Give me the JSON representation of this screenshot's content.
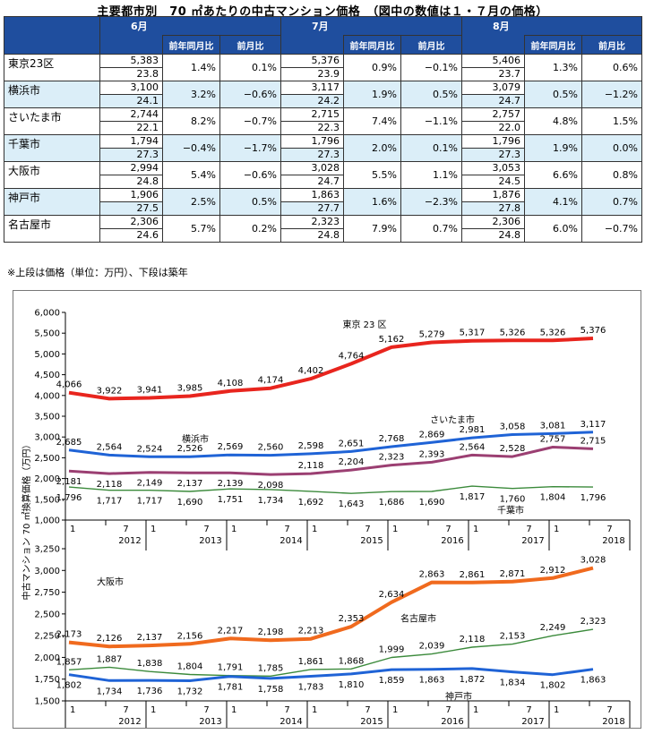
{
  "title": "主要都市別　70 ㎡あたりの中古マンション価格　（図中の数値は１・７月の価格）",
  "table": {
    "months": [
      "6月",
      "7月",
      "8月"
    ],
    "sub_headers": [
      "前年同月比",
      "前月比"
    ],
    "rows": [
      {
        "city": "東京23区",
        "cells": [
          {
            "price": "5,383",
            "age": "23.8",
            "yoy": "1.4%",
            "mom": "0.1%"
          },
          {
            "price": "5,376",
            "age": "23.9",
            "yoy": "0.9%",
            "mom": "−0.1%"
          },
          {
            "price": "5,406",
            "age": "23.7",
            "yoy": "1.3%",
            "mom": "0.6%"
          }
        ]
      },
      {
        "city": "横浜市",
        "cells": [
          {
            "price": "3,100",
            "age": "24.1",
            "yoy": "3.2%",
            "mom": "−0.6%"
          },
          {
            "price": "3,117",
            "age": "24.2",
            "yoy": "1.9%",
            "mom": "0.5%"
          },
          {
            "price": "3,079",
            "age": "24.7",
            "yoy": "0.5%",
            "mom": "−1.2%"
          }
        ]
      },
      {
        "city": "さいたま市",
        "cells": [
          {
            "price": "2,744",
            "age": "22.1",
            "yoy": "8.2%",
            "mom": "−0.7%"
          },
          {
            "price": "2,715",
            "age": "22.3",
            "yoy": "7.4%",
            "mom": "−1.1%"
          },
          {
            "price": "2,757",
            "age": "22.0",
            "yoy": "4.8%",
            "mom": "1.5%"
          }
        ]
      },
      {
        "city": "千葉市",
        "cells": [
          {
            "price": "1,794",
            "age": "27.3",
            "yoy": "−0.4%",
            "mom": "−1.7%"
          },
          {
            "price": "1,796",
            "age": "27.3",
            "yoy": "2.0%",
            "mom": "0.1%"
          },
          {
            "price": "1,796",
            "age": "27.3",
            "yoy": "1.9%",
            "mom": "0.0%"
          }
        ]
      },
      {
        "city": "大阪市",
        "cells": [
          {
            "price": "2,994",
            "age": "24.8",
            "yoy": "5.4%",
            "mom": "−0.6%"
          },
          {
            "price": "3,028",
            "age": "24.7",
            "yoy": "5.5%",
            "mom": "1.1%"
          },
          {
            "price": "3,053",
            "age": "24.5",
            "yoy": "6.6%",
            "mom": "0.8%"
          }
        ]
      },
      {
        "city": "神戸市",
        "cells": [
          {
            "price": "1,906",
            "age": "27.5",
            "yoy": "2.5%",
            "mom": "0.5%"
          },
          {
            "price": "1,863",
            "age": "27.7",
            "yoy": "1.6%",
            "mom": "−2.3%"
          },
          {
            "price": "1,876",
            "age": "27.8",
            "yoy": "4.1%",
            "mom": "0.7%"
          }
        ]
      },
      {
        "city": "名古屋市",
        "cells": [
          {
            "price": "2,306",
            "age": "24.6",
            "yoy": "5.7%",
            "mom": "0.2%"
          },
          {
            "price": "2,323",
            "age": "24.8",
            "yoy": "7.9%",
            "mom": "0.7%"
          },
          {
            "price": "2,306",
            "age": "24.8",
            "yoy": "6.0%",
            "mom": "−0.7%"
          }
        ]
      }
    ],
    "note": "※上段は価格（単位：万円）、下段は築年"
  },
  "chart_data": {
    "type": "line",
    "ylabel": "中古マンション 70 ㎡換算価格（万円）",
    "x_ticks": [
      "1",
      "7",
      "1",
      "7",
      "1",
      "7",
      "1",
      "7",
      "1",
      "7",
      "1",
      "7",
      "1",
      "7"
    ],
    "years": [
      "2012",
      "2013",
      "2014",
      "2015",
      "2016",
      "2017",
      "2018"
    ],
    "x_dates": [
      "2012-01",
      "2012-07",
      "2013-01",
      "2013-07",
      "2014-01",
      "2014-07",
      "2015-01",
      "2015-07",
      "2016-01",
      "2016-07",
      "2017-01",
      "2017-07",
      "2018-01",
      "2018-07"
    ],
    "panels": [
      {
        "ylim": [
          1000,
          6000
        ],
        "yticks": [
          "1,000",
          "1,500",
          "2,000",
          "2,500",
          "3,000",
          "3,500",
          "4,000",
          "4,500",
          "5,000",
          "5,500",
          "6,000"
        ],
        "series": [
          {
            "name": "東京 23 区",
            "color": "#e8251e",
            "values": [
              4066,
              3922,
              3941,
              3985,
              4108,
              4174,
              4402,
              4764,
              5162,
              5279,
              5317,
              5326,
              5326,
              5376
            ],
            "labels": [
              "4,066",
              "3,922",
              "3,941",
              "3,985",
              "4,108",
              "4,174",
              "4,402",
              "4,764",
              "5,162",
              "5,279",
              "5,317",
              "5,326",
              "5,326",
              "5,376"
            ]
          },
          {
            "name": "横浜市",
            "color": "#1f63d6",
            "values": [
              2685,
              2564,
              2524,
              2526,
              2569,
              2560,
              2598,
              2651,
              2768,
              2869,
              2981,
              3058,
              3081,
              3117
            ],
            "labels": [
              "2,685",
              "2,564",
              "2,524",
              "2,526",
              "2,569",
              "2,560",
              "2,598",
              "2,651",
              "2,768",
              "2,869",
              "2,981",
              "3,058",
              "3,081",
              "3,117"
            ]
          },
          {
            "name": "さいたま市",
            "color": "#9b3f72",
            "values": [
              2181,
              2118,
              2149,
              2137,
              2139,
              2098,
              2118,
              2204,
              2323,
              2393,
              2564,
              2528,
              2757,
              2715
            ],
            "labels": [
              "2,181",
              "2,118",
              "2,149",
              "2,137",
              "2,139",
              "2,098",
              "2,118",
              "2,204",
              "2,323",
              "2,393",
              "2,564",
              "2,528",
              "2,757",
              "2,715"
            ]
          },
          {
            "name": "千葉市",
            "color": "#3b8a3b",
            "values": [
              1796,
              1717,
              1717,
              1690,
              1751,
              1734,
              1692,
              1643,
              1686,
              1690,
              1817,
              1760,
              1804,
              1796
            ],
            "labels": [
              "1,796",
              "1,717",
              "1,717",
              "1,690",
              "1,751",
              "1,734",
              "1,692",
              "1,643",
              "1,686",
              "1,690",
              "1,817",
              "1,760",
              "1,804",
              "1,796"
            ]
          }
        ]
      },
      {
        "ylim": [
          1500,
          3250
        ],
        "yticks": [
          "1,500",
          "1,750",
          "2,000",
          "2,250",
          "2,500",
          "2,750",
          "3,000",
          "3,250"
        ],
        "series": [
          {
            "name": "大阪市",
            "color": "#f06a1e",
            "values": [
              2173,
              2126,
              2137,
              2156,
              2217,
              2198,
              2213,
              2353,
              2634,
              2863,
              2861,
              2871,
              2912,
              3028
            ],
            "labels": [
              "2,173",
              "2,126",
              "2,137",
              "2,156",
              "2,217",
              "2,198",
              "2,213",
              "2,353",
              "2,634",
              "2,863",
              "2,861",
              "2,871",
              "2,912",
              "3,028"
            ]
          },
          {
            "name": "名古屋市",
            "color": "#3b8a3b",
            "values": [
              1857,
              1887,
              1838,
              1804,
              1791,
              1785,
              1861,
              1868,
              1999,
              2039,
              2118,
              2153,
              2249,
              2323
            ],
            "labels": [
              "1,857",
              "1,887",
              "1,838",
              "1,804",
              "1,791",
              "1,785",
              "1,861",
              "1,868",
              "1,999",
              "2,039",
              "2,118",
              "2,153",
              "2,249",
              "2,323"
            ]
          },
          {
            "name": "神戸市",
            "color": "#1f63d6",
            "values": [
              1802,
              1734,
              1736,
              1732,
              1781,
              1758,
              1783,
              1810,
              1859,
              1863,
              1872,
              1834,
              1802,
              1863
            ],
            "labels": [
              "1,802",
              "1,734",
              "1,736",
              "1,732",
              "1,781",
              "1,758",
              "1,783",
              "1,810",
              "1,859",
              "1,863",
              "1,872",
              "1,834",
              "1,802",
              "1,863"
            ]
          }
        ]
      }
    ]
  }
}
